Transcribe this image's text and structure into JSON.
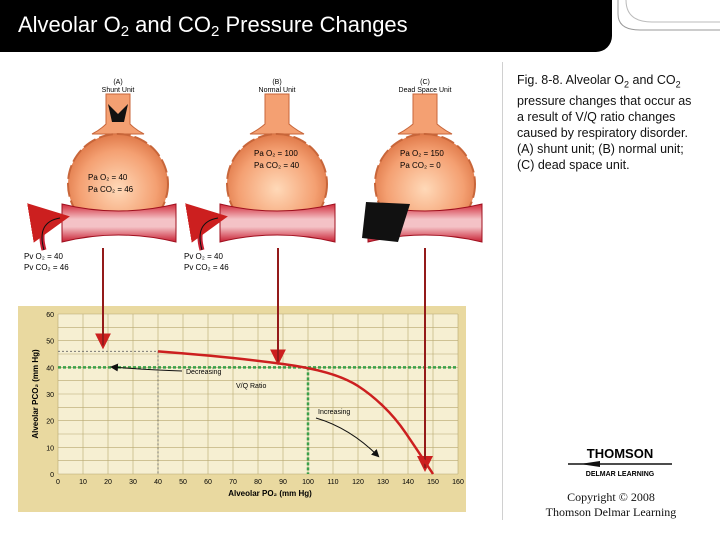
{
  "title": {
    "part1": "Alveolar O",
    "sub1": "2",
    "part2": " and CO",
    "sub2": "2",
    "part3": " Pressure Changes"
  },
  "caption": {
    "l1": "Fig. 8-8.  Alveolar O",
    "s1": "2",
    "l2": " and",
    "l3": "CO",
    "s2": "2",
    "l4": " pressure changes that occur as a result of V/Q ratio changes caused by respiratory disorder.",
    "l5": "(A) shunt unit; (B) normal unit; (C) dead space unit."
  },
  "units": [
    {
      "letter": "(A)",
      "name": "Shunt Unit",
      "po2": "Pa O₂ = 40",
      "pco2": "Pa CO₂ = 46"
    },
    {
      "letter": "(B)",
      "name": "Normal Unit",
      "po2": "Pa O₂ = 100",
      "pco2": "Pa CO₂ = 40"
    },
    {
      "letter": "(C)",
      "name": "Dead Space Unit",
      "po2": "Pa O₂ = 150",
      "pco2": "Pa CO₂ = 0"
    }
  ],
  "venous": [
    {
      "po2": "Pv O₂ = 40",
      "pco2": "Pv CO₂ = 46"
    },
    {
      "po2": "Pv O₂ = 40",
      "pco2": "Pv CO₂ = 46"
    }
  ],
  "chart_data": {
    "type": "line",
    "xlabel": "Alveolar PO₂ (mm Hg)",
    "ylabel": "Alveolar PCO₂ (mm Hg)",
    "xlim": [
      0,
      160
    ],
    "ylim": [
      0,
      60
    ],
    "xticks": [
      "0",
      "10",
      "20",
      "30",
      "40",
      "50",
      "60",
      "70",
      "80",
      "90",
      "100",
      "110",
      "120",
      "130",
      "140",
      "150",
      "160"
    ],
    "yticks": [
      "0",
      "10",
      "20",
      "30",
      "40",
      "50",
      "60"
    ],
    "grid": true,
    "curve": [
      {
        "x": 40,
        "y": 46
      },
      {
        "x": 60,
        "y": 44.5
      },
      {
        "x": 80,
        "y": 42.5
      },
      {
        "x": 100,
        "y": 40
      },
      {
        "x": 115,
        "y": 36
      },
      {
        "x": 125,
        "y": 30
      },
      {
        "x": 135,
        "y": 21
      },
      {
        "x": 143,
        "y": 10
      },
      {
        "x": 150,
        "y": 0
      }
    ],
    "reference_lines": [
      {
        "axis": "y",
        "value": 40
      },
      {
        "axis": "x",
        "value": 100
      }
    ],
    "annotations": [
      {
        "text": "Decreasing"
      },
      {
        "text": "V/Q Ratio"
      },
      {
        "text": "Increasing"
      }
    ],
    "curve_color": "#cc1f1f",
    "reference_color": "#3aa04a"
  },
  "copyright": {
    "line1": "Copyright © 2008",
    "line2": "Thomson Delmar Learning"
  },
  "logo": {
    "top": "THOMSON",
    "bottom": "DELMAR LEARNING"
  }
}
